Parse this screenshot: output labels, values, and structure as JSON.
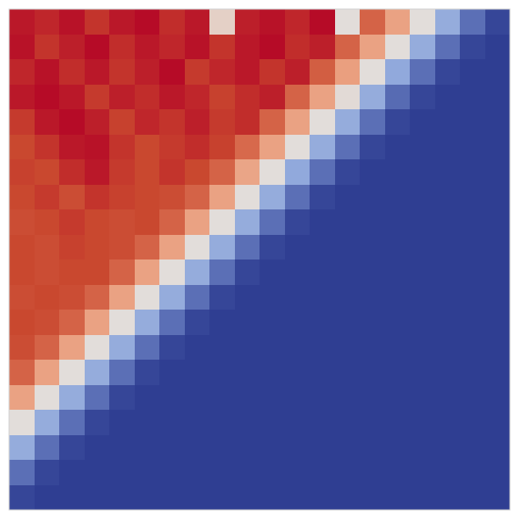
{
  "chart_data": {
    "type": "heatmap",
    "tick_labels": false,
    "color_range": [
      0,
      1
    ],
    "cells": [
      [
        0.97,
        0.95,
        0.98,
        0.93,
        0.97,
        0.99,
        0.94,
        0.97,
        0.55,
        0.96,
        0.98,
        0.95,
        0.99,
        0.5,
        0.85,
        0.72,
        0.5,
        0.28,
        0.12,
        0.02
      ],
      [
        0.98,
        0.93,
        0.96,
        0.99,
        0.94,
        0.97,
        0.95,
        0.98,
        0.93,
        0.97,
        0.99,
        0.94,
        0.96,
        0.85,
        0.72,
        0.5,
        0.28,
        0.12,
        0.02,
        0
      ],
      [
        0.95,
        0.98,
        0.94,
        0.97,
        0.93,
        0.96,
        0.99,
        0.92,
        0.95,
        0.97,
        0.93,
        0.96,
        0.86,
        0.73,
        0.5,
        0.27,
        0.12,
        0.02,
        0,
        0
      ],
      [
        0.97,
        0.99,
        0.97,
        0.92,
        0.96,
        0.94,
        0.97,
        0.95,
        0.91,
        0.94,
        0.96,
        0.85,
        0.72,
        0.51,
        0.28,
        0.11,
        0.02,
        0,
        0,
        0
      ],
      [
        0.92,
        0.97,
        0.99,
        0.96,
        0.91,
        0.95,
        0.93,
        0.96,
        0.92,
        0.94,
        0.85,
        0.72,
        0.5,
        0.28,
        0.12,
        0.02,
        0,
        0,
        0,
        0
      ],
      [
        0.9,
        0.93,
        0.97,
        0.98,
        0.93,
        0.9,
        0.92,
        0.94,
        0.91,
        0.84,
        0.72,
        0.5,
        0.28,
        0.12,
        0.02,
        0,
        0,
        0,
        0,
        0
      ],
      [
        0.91,
        0.9,
        0.94,
        0.97,
        0.92,
        0.9,
        0.93,
        0.9,
        0.85,
        0.71,
        0.5,
        0.27,
        0.12,
        0.02,
        0,
        0,
        0,
        0,
        0,
        0
      ],
      [
        0.9,
        0.92,
        0.89,
        0.93,
        0.91,
        0.9,
        0.89,
        0.85,
        0.72,
        0.5,
        0.28,
        0.12,
        0.02,
        0,
        0,
        0,
        0,
        0,
        0,
        0
      ],
      [
        0.89,
        0.9,
        0.92,
        0.9,
        0.89,
        0.9,
        0.85,
        0.72,
        0.5,
        0.28,
        0.12,
        0.02,
        0,
        0,
        0,
        0,
        0,
        0,
        0,
        0
      ],
      [
        0.9,
        0.89,
        0.91,
        0.9,
        0.89,
        0.85,
        0.72,
        0.5,
        0.28,
        0.12,
        0.02,
        0,
        0,
        0,
        0,
        0,
        0,
        0,
        0,
        0
      ],
      [
        0.9,
        0.89,
        0.9,
        0.9,
        0.85,
        0.72,
        0.5,
        0.28,
        0.12,
        0.02,
        0,
        0,
        0,
        0,
        0,
        0,
        0,
        0,
        0,
        0
      ],
      [
        0.89,
        0.9,
        0.89,
        0.85,
        0.72,
        0.5,
        0.28,
        0.12,
        0.02,
        0,
        0,
        0,
        0,
        0,
        0,
        0,
        0,
        0,
        0,
        0
      ],
      [
        0.9,
        0.89,
        0.85,
        0.72,
        0.5,
        0.28,
        0.12,
        0.02,
        0,
        0,
        0,
        0,
        0,
        0,
        0,
        0,
        0,
        0,
        0,
        0
      ],
      [
        0.89,
        0.85,
        0.72,
        0.5,
        0.28,
        0.12,
        0.02,
        0,
        0,
        0,
        0,
        0,
        0,
        0,
        0,
        0,
        0,
        0,
        0,
        0
      ],
      [
        0.85,
        0.72,
        0.5,
        0.28,
        0.12,
        0.02,
        0,
        0,
        0,
        0,
        0,
        0,
        0,
        0,
        0,
        0,
        0,
        0,
        0,
        0
      ],
      [
        0.72,
        0.5,
        0.28,
        0.12,
        0.02,
        0,
        0,
        0,
        0,
        0,
        0,
        0,
        0,
        0,
        0,
        0,
        0,
        0,
        0,
        0
      ],
      [
        0.5,
        0.28,
        0.12,
        0.02,
        0,
        0,
        0,
        0,
        0,
        0,
        0,
        0,
        0,
        0,
        0,
        0,
        0,
        0,
        0,
        0
      ],
      [
        0.28,
        0.12,
        0.02,
        0,
        0,
        0,
        0,
        0,
        0,
        0,
        0,
        0,
        0,
        0,
        0,
        0,
        0,
        0,
        0,
        0
      ],
      [
        0.12,
        0.02,
        0,
        0,
        0,
        0,
        0,
        0,
        0,
        0,
        0,
        0,
        0,
        0,
        0,
        0,
        0,
        0,
        0,
        0
      ],
      [
        0.02,
        0,
        0,
        0,
        0,
        0,
        0,
        0,
        0,
        0,
        0,
        0,
        0,
        0,
        0,
        0,
        0,
        0,
        0,
        0
      ]
    ]
  }
}
